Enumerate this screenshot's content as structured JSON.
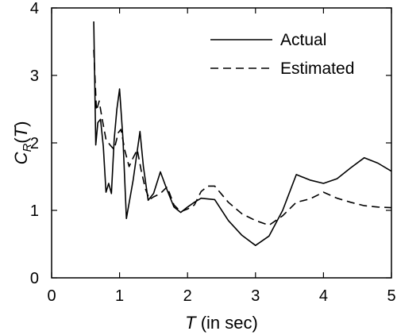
{
  "chart_data": {
    "type": "line",
    "xlabel": "T (in sec)",
    "ylabel": "CR(T)",
    "xlim": [
      0,
      5
    ],
    "ylim": [
      0,
      4
    ],
    "xticks": [
      0,
      1,
      2,
      3,
      4,
      5
    ],
    "yticks": [
      0,
      1,
      2,
      3,
      4
    ],
    "grid": false,
    "legend_position": "top-right",
    "series": [
      {
        "name": "Actual",
        "style": "solid",
        "color": "#000000",
        "x": [
          0.62,
          0.65,
          0.68,
          0.72,
          0.76,
          0.8,
          0.84,
          0.88,
          0.92,
          0.96,
          1.0,
          1.05,
          1.1,
          1.2,
          1.3,
          1.35,
          1.42,
          1.5,
          1.6,
          1.7,
          1.8,
          1.9,
          2.0,
          2.1,
          2.2,
          2.4,
          2.6,
          2.8,
          3.0,
          3.2,
          3.4,
          3.6,
          3.8,
          4.0,
          4.2,
          4.4,
          4.6,
          4.8,
          5.0
        ],
        "y": [
          3.8,
          1.97,
          2.3,
          2.35,
          1.95,
          1.27,
          1.4,
          1.25,
          2.05,
          2.5,
          2.8,
          2.05,
          0.88,
          1.45,
          2.17,
          1.65,
          1.15,
          1.25,
          1.57,
          1.3,
          1.05,
          0.97,
          1.05,
          1.12,
          1.18,
          1.16,
          0.85,
          0.63,
          0.48,
          0.62,
          1.0,
          1.53,
          1.45,
          1.4,
          1.47,
          1.63,
          1.78,
          1.7,
          1.58
        ]
      },
      {
        "name": "Estimated",
        "style": "dashed",
        "color": "#000000",
        "x": [
          0.62,
          0.66,
          0.7,
          0.74,
          0.8,
          0.86,
          0.92,
          0.98,
          1.02,
          1.08,
          1.14,
          1.2,
          1.26,
          1.32,
          1.38,
          1.44,
          1.5,
          1.6,
          1.7,
          1.8,
          1.9,
          2.0,
          2.1,
          2.2,
          2.3,
          2.4,
          2.6,
          2.8,
          3.0,
          3.2,
          3.4,
          3.6,
          3.8,
          4.0,
          4.2,
          4.4,
          4.6,
          4.8,
          5.0
        ],
        "y": [
          3.38,
          2.48,
          2.62,
          2.38,
          2.05,
          1.97,
          1.9,
          2.15,
          2.2,
          1.88,
          1.65,
          1.78,
          1.9,
          1.58,
          1.32,
          1.16,
          1.2,
          1.25,
          1.35,
          1.08,
          0.98,
          1.02,
          1.08,
          1.28,
          1.36,
          1.36,
          1.12,
          0.95,
          0.85,
          0.78,
          0.92,
          1.12,
          1.17,
          1.27,
          1.18,
          1.12,
          1.07,
          1.05,
          1.04
        ]
      }
    ]
  }
}
